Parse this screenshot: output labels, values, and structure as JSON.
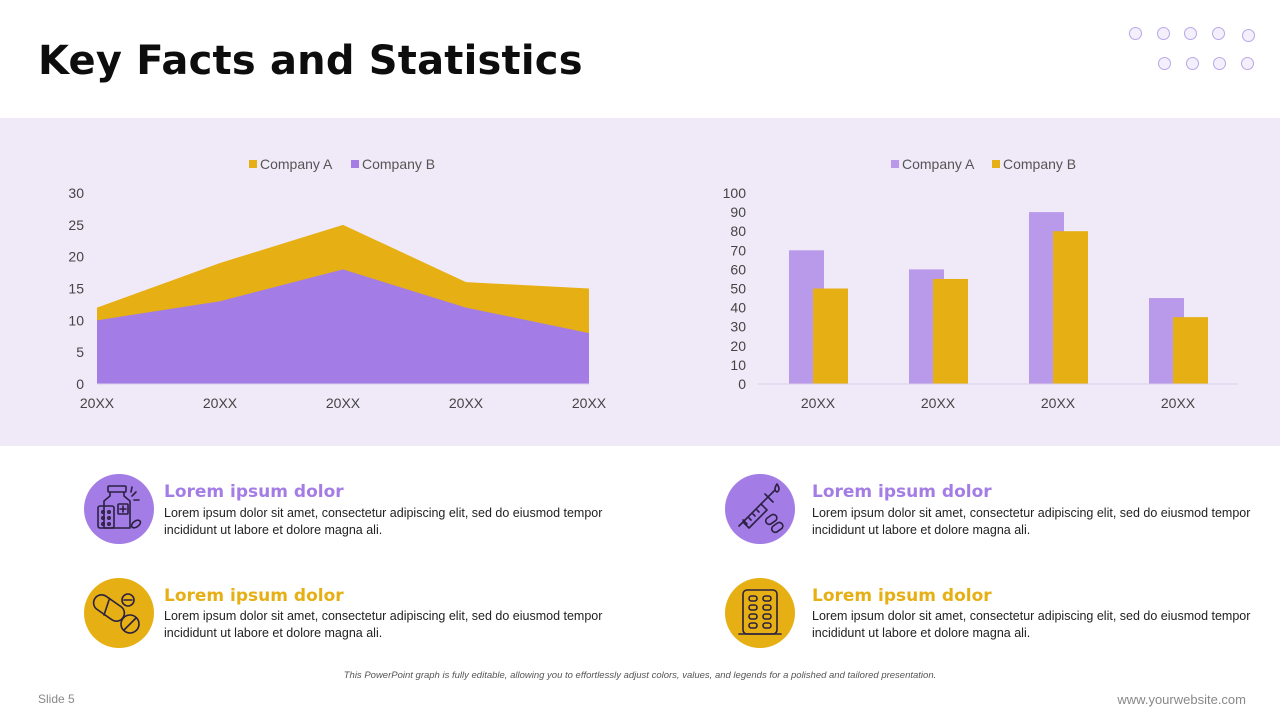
{
  "title": "Key Facts and Statistics",
  "colors": {
    "company_a": "#E6AF13",
    "company_b_area": "#A37CE6",
    "company_a_bar": "#B99AEA",
    "company_b_bar": "#E6AF13",
    "band": "#F0EAF8",
    "accent_purple": "#A37CE6",
    "accent_gold": "#E6AF13"
  },
  "chart_data": [
    {
      "type": "area",
      "stacked": true,
      "legend": [
        "Company A",
        "Company B"
      ],
      "categories": [
        "20XX",
        "20XX",
        "20XX",
        "20XX",
        "20XX"
      ],
      "series": [
        {
          "name": "Company A",
          "values": [
            2,
            6,
            7,
            4,
            7
          ]
        },
        {
          "name": "Company B",
          "values": [
            10,
            13,
            18,
            12,
            8
          ]
        }
      ],
      "ylim": [
        0,
        30
      ],
      "yticks": [
        0,
        5,
        10,
        15,
        20,
        25,
        30
      ]
    },
    {
      "type": "bar",
      "legend": [
        "Company A",
        "Company B"
      ],
      "categories": [
        "20XX",
        "20XX",
        "20XX",
        "20XX"
      ],
      "series": [
        {
          "name": "Company A",
          "values": [
            70,
            60,
            90,
            45
          ]
        },
        {
          "name": "Company B",
          "values": [
            50,
            55,
            80,
            35
          ]
        }
      ],
      "ylim": [
        0,
        100
      ],
      "yticks": [
        0,
        10,
        20,
        30,
        40,
        50,
        60,
        70,
        80,
        90,
        100
      ]
    }
  ],
  "items": [
    {
      "heading": "Lorem ipsum dolor",
      "body": "Lorem ipsum dolor sit amet, consectetur adipiscing elit, sed do eiusmod tempor incididunt ut labore et dolore magna ali.",
      "icon": "medicine-bottle-icon"
    },
    {
      "heading": "Lorem ipsum dolor",
      "body": "Lorem ipsum dolor sit amet, consectetur adipiscing elit, sed do eiusmod tempor incididunt ut labore et dolore magna ali.",
      "icon": "syringe-pills-icon"
    },
    {
      "heading": "Lorem ipsum dolor",
      "body": "Lorem ipsum dolor sit amet, consectetur adipiscing elit, sed do eiusmod tempor incididunt ut labore et dolore magna ali.",
      "icon": "capsules-icon"
    },
    {
      "heading": "Lorem ipsum dolor",
      "body": "Lorem ipsum dolor sit amet, consectetur adipiscing elit, sed do eiusmod tempor incididunt ut labore et dolore magna ali.",
      "icon": "pill-blister-icon"
    }
  ],
  "footnote": "This PowerPoint graph is fully editable, allowing you to effortlessly adjust colors, values, and legends for a polished and tailored presentation.",
  "slide_label": "Slide 5",
  "website": "www.yourwebsite.com"
}
